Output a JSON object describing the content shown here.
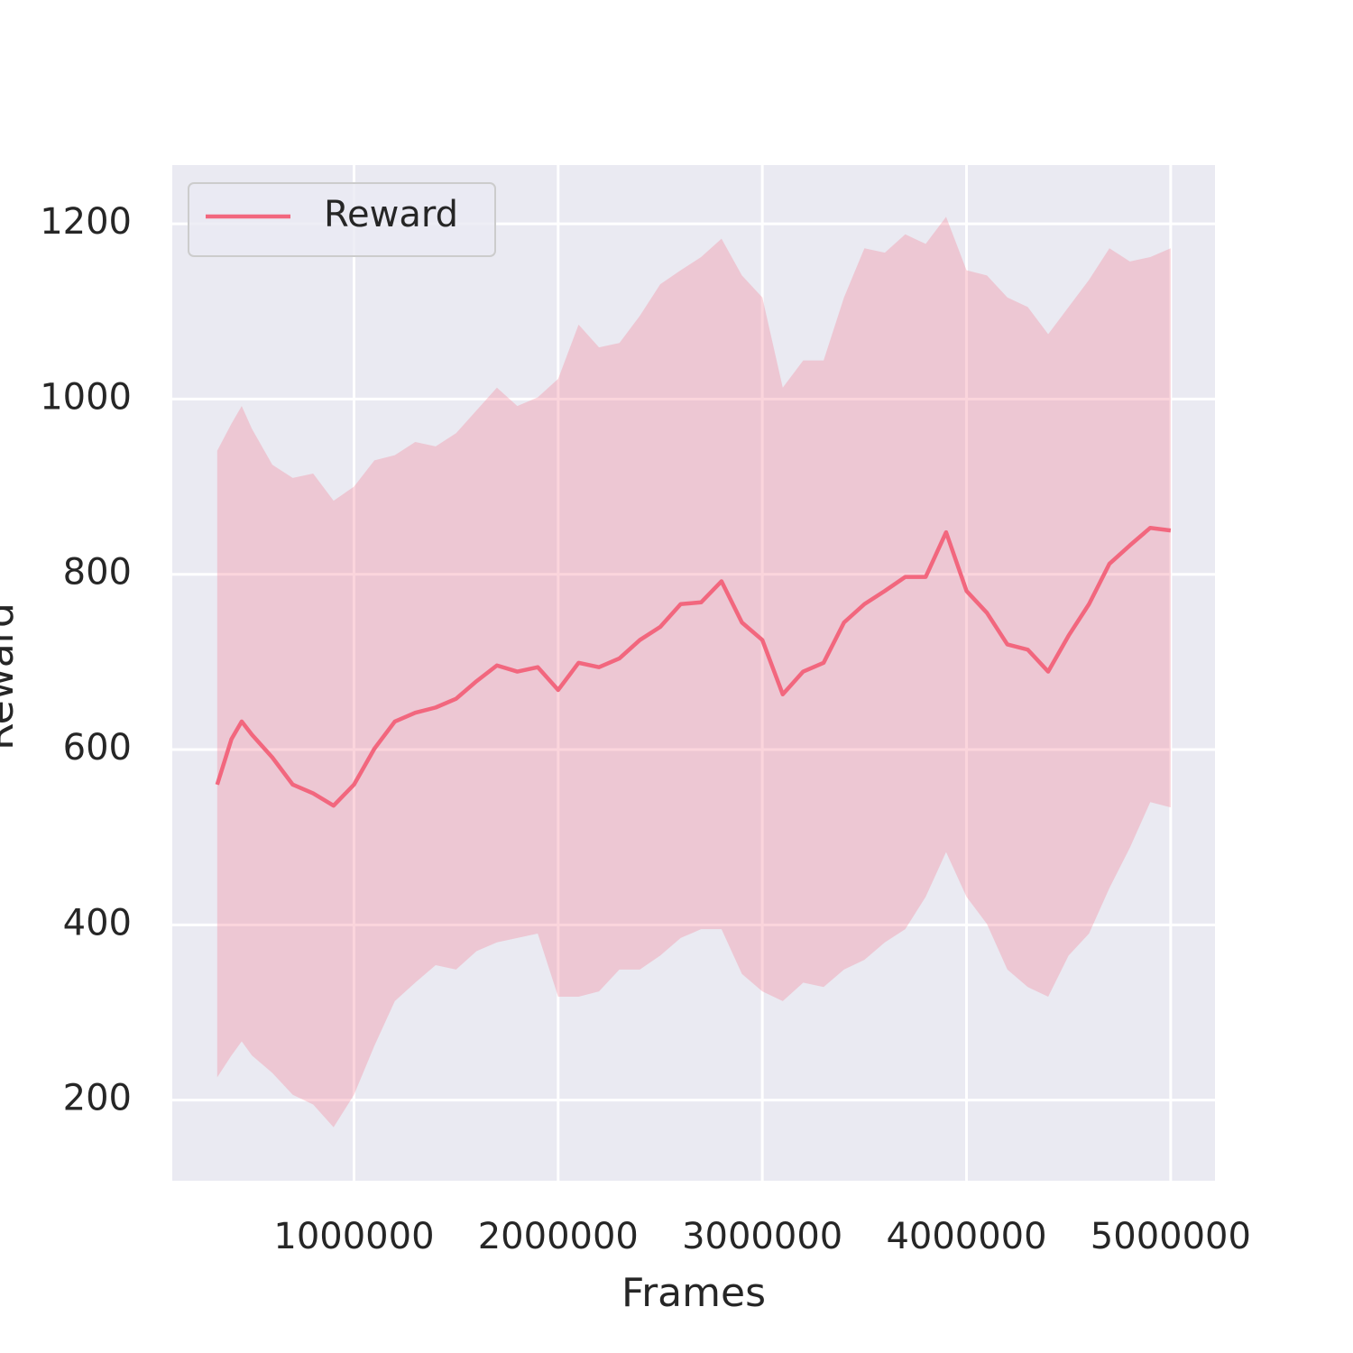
{
  "chart_data": {
    "type": "line",
    "xlabel": "Frames",
    "ylabel": "Reward",
    "x": [
      330000,
      400000,
      450000,
      500000,
      600000,
      700000,
      800000,
      900000,
      1000000,
      1100000,
      1200000,
      1300000,
      1400000,
      1500000,
      1600000,
      1700000,
      1800000,
      1900000,
      2000000,
      2100000,
      2200000,
      2300000,
      2400000,
      2500000,
      2600000,
      2700000,
      2800000,
      2900000,
      3000000,
      3100000,
      3200000,
      3300000,
      3400000,
      3500000,
      3600000,
      3700000,
      3800000,
      3900000,
      4000000,
      4100000,
      4200000,
      4300000,
      4400000,
      4500000,
      4600000,
      4700000,
      4800000,
      4900000,
      5000000
    ],
    "series": [
      {
        "name": "Reward",
        "color": "#f2677e",
        "values": [
          560,
          612,
          632,
          617,
          591,
          560,
          550,
          536,
          560,
          601,
          632,
          642,
          648,
          658,
          678,
          696,
          689,
          694,
          668,
          699,
          694,
          704,
          725,
          740,
          766,
          768,
          792,
          745,
          725,
          663,
          689,
          699,
          745,
          766,
          781,
          797,
          797,
          848,
          781,
          756,
          720,
          714,
          689,
          730,
          766,
          812,
          833,
          853,
          850
        ]
      }
    ],
    "band": {
      "color": "#f4869c",
      "upper": [
        941,
        972,
        992,
        966,
        925,
        910,
        915,
        884,
        900,
        930,
        936,
        951,
        946,
        961,
        987,
        1013,
        992,
        1002,
        1023,
        1085,
        1059,
        1064,
        1095,
        1131,
        1147,
        1162,
        1183,
        1141,
        1116,
        1013,
        1044,
        1044,
        1116,
        1172,
        1167,
        1188,
        1177,
        1208,
        1147,
        1141,
        1116,
        1105,
        1074,
        1105,
        1136,
        1172,
        1157,
        1162,
        1172
      ],
      "lower": [
        226,
        251,
        267,
        251,
        231,
        206,
        195,
        169,
        206,
        262,
        313,
        334,
        354,
        349,
        370,
        380,
        385,
        390,
        318,
        318,
        324,
        349,
        349,
        365,
        385,
        395,
        395,
        344,
        324,
        313,
        334,
        329,
        349,
        360,
        380,
        395,
        432,
        483,
        432,
        401,
        349,
        329,
        318,
        365,
        390,
        442,
        488,
        540,
        534
      ]
    },
    "xlim": [
      110000,
      5217000
    ],
    "ylim": [
      108,
      1267
    ],
    "xticks": [
      1000000,
      2000000,
      3000000,
      4000000,
      5000000
    ],
    "yticks": [
      200,
      400,
      600,
      800,
      1000,
      1200
    ],
    "grid": true,
    "legend": "upper left"
  }
}
